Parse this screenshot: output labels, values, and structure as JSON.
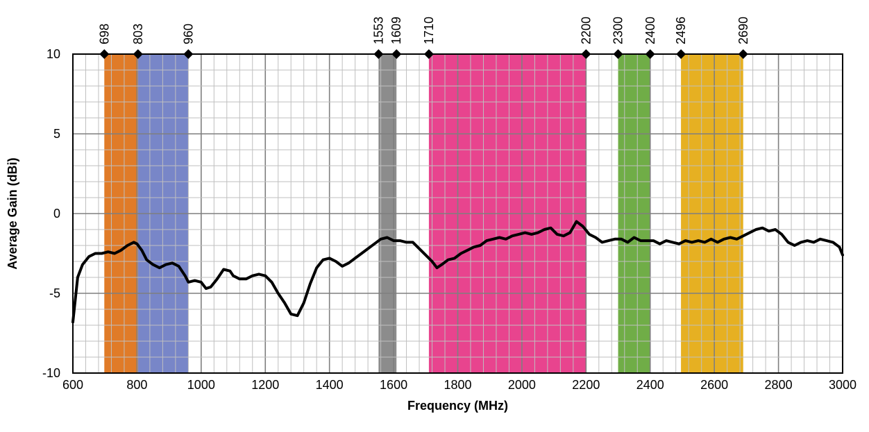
{
  "chart_data": {
    "type": "line",
    "title": "",
    "xlabel": "Frequency (MHz)",
    "ylabel": "Average Gain (dBi)",
    "xlim": [
      600,
      3000
    ],
    "ylim": [
      -10,
      10
    ],
    "x_ticks": [
      600,
      800,
      1000,
      1200,
      1400,
      1600,
      1800,
      2000,
      2200,
      2400,
      2600,
      2800,
      3000
    ],
    "y_ticks": [
      -10,
      -5,
      0,
      5,
      10
    ],
    "grid": true,
    "band_markers": [
      "698",
      "803",
      "960",
      "1553",
      "1609",
      "1710",
      "2200",
      "2300",
      "2400",
      "2496",
      "2690"
    ],
    "bands": [
      {
        "from": 698,
        "to": 803,
        "color": "#E07B28"
      },
      {
        "from": 803,
        "to": 960,
        "color": "#7886C8"
      },
      {
        "from": 1553,
        "to": 1609,
        "color": "#8C8C8C"
      },
      {
        "from": 1710,
        "to": 2200,
        "color": "#E8448E"
      },
      {
        "from": 2300,
        "to": 2400,
        "color": "#70AD47"
      },
      {
        "from": 2496,
        "to": 2690,
        "color": "#E6B022"
      }
    ],
    "series": [
      {
        "line_color": "#000000",
        "x": [
          600,
          615,
          630,
          650,
          670,
          690,
          710,
          730,
          750,
          770,
          790,
          800,
          815,
          830,
          850,
          870,
          890,
          910,
          930,
          950,
          960,
          980,
          1000,
          1015,
          1030,
          1050,
          1070,
          1090,
          1100,
          1120,
          1140,
          1160,
          1180,
          1200,
          1220,
          1240,
          1260,
          1280,
          1300,
          1320,
          1340,
          1360,
          1380,
          1400,
          1420,
          1440,
          1460,
          1480,
          1500,
          1520,
          1540,
          1560,
          1580,
          1600,
          1620,
          1640,
          1660,
          1680,
          1700,
          1720,
          1735,
          1750,
          1770,
          1790,
          1810,
          1830,
          1850,
          1870,
          1890,
          1910,
          1930,
          1950,
          1970,
          1990,
          2010,
          2030,
          2050,
          2070,
          2090,
          2110,
          2130,
          2150,
          2170,
          2190,
          2210,
          2230,
          2250,
          2270,
          2290,
          2310,
          2330,
          2350,
          2370,
          2390,
          2410,
          2430,
          2450,
          2470,
          2490,
          2510,
          2530,
          2550,
          2570,
          2590,
          2610,
          2630,
          2650,
          2670,
          2690,
          2710,
          2730,
          2750,
          2770,
          2790,
          2810,
          2830,
          2850,
          2870,
          2890,
          2910,
          2930,
          2950,
          2970,
          2990,
          3000
        ],
        "y": [
          -6.8,
          -4.0,
          -3.2,
          -2.7,
          -2.5,
          -2.5,
          -2.4,
          -2.5,
          -2.3,
          -2.0,
          -1.8,
          -1.9,
          -2.3,
          -2.9,
          -3.2,
          -3.4,
          -3.2,
          -3.1,
          -3.3,
          -3.9,
          -4.3,
          -4.2,
          -4.3,
          -4.7,
          -4.6,
          -4.1,
          -3.5,
          -3.6,
          -3.9,
          -4.1,
          -4.1,
          -3.9,
          -3.8,
          -3.9,
          -4.3,
          -5.0,
          -5.6,
          -6.3,
          -6.4,
          -5.6,
          -4.4,
          -3.4,
          -2.9,
          -2.8,
          -3.0,
          -3.3,
          -3.1,
          -2.8,
          -2.5,
          -2.2,
          -1.9,
          -1.6,
          -1.5,
          -1.7,
          -1.7,
          -1.8,
          -1.8,
          -2.2,
          -2.6,
          -3.0,
          -3.4,
          -3.2,
          -2.9,
          -2.8,
          -2.5,
          -2.3,
          -2.1,
          -2.0,
          -1.7,
          -1.6,
          -1.5,
          -1.6,
          -1.4,
          -1.3,
          -1.2,
          -1.3,
          -1.2,
          -1.0,
          -0.9,
          -1.3,
          -1.4,
          -1.2,
          -0.5,
          -0.8,
          -1.3,
          -1.5,
          -1.8,
          -1.7,
          -1.6,
          -1.6,
          -1.8,
          -1.5,
          -1.7,
          -1.7,
          -1.7,
          -1.9,
          -1.7,
          -1.8,
          -1.9,
          -1.7,
          -1.8,
          -1.7,
          -1.8,
          -1.6,
          -1.8,
          -1.6,
          -1.5,
          -1.6,
          -1.4,
          -1.2,
          -1.0,
          -0.9,
          -1.1,
          -1.0,
          -1.3,
          -1.8,
          -2.0,
          -1.8,
          -1.7,
          -1.8,
          -1.6,
          -1.7,
          -1.8,
          -2.1,
          -2.6
        ]
      }
    ]
  }
}
